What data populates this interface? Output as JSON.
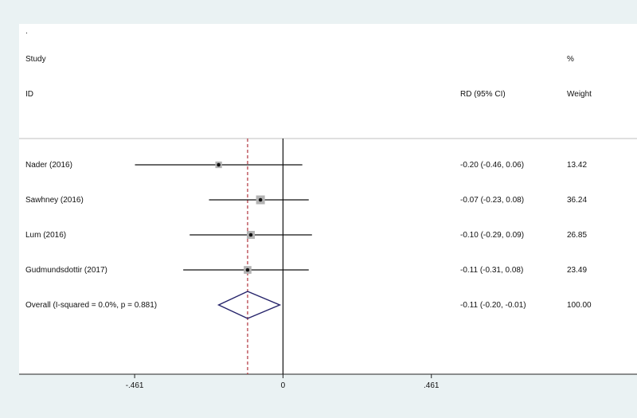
{
  "chart_data": {
    "type": "forest",
    "header": {
      "dot": ".",
      "study_label": "Study",
      "id_label": "ID",
      "effect_label": "RD (95% CI)",
      "percent_label": "%",
      "weight_label": "Weight"
    },
    "xlim": [
      -0.82,
      1.1
    ],
    "ticks": [
      {
        "value": -0.461,
        "label": "-.461"
      },
      {
        "value": 0,
        "label": "0"
      },
      {
        "value": 0.461,
        "label": ".461"
      }
    ],
    "null_line": 0,
    "overall_line": -0.11,
    "colors": {
      "background": "#eaf2f3",
      "panel": "#ffffff",
      "line": "#111111",
      "box": "#b3b3b3",
      "diamond": "#26246b",
      "overall_line": "#b0313a"
    },
    "studies": [
      {
        "id": "Nader (2016)",
        "rd": -0.2,
        "lo": -0.46,
        "hi": 0.06,
        "ci_text": "-0.20 (-0.46, 0.06)",
        "weight": 13.42,
        "weight_text": "13.42"
      },
      {
        "id": "Sawhney (2016)",
        "rd": -0.07,
        "lo": -0.23,
        "hi": 0.08,
        "ci_text": "-0.07 (-0.23, 0.08)",
        "weight": 36.24,
        "weight_text": "36.24"
      },
      {
        "id": "Lum (2016)",
        "rd": -0.1,
        "lo": -0.29,
        "hi": 0.09,
        "ci_text": "-0.10 (-0.29, 0.09)",
        "weight": 26.85,
        "weight_text": "26.85"
      },
      {
        "id": "Gudmundsdottir (2017)",
        "rd": -0.11,
        "lo": -0.31,
        "hi": 0.08,
        "ci_text": "-0.11 (-0.31, 0.08)",
        "weight": 23.49,
        "weight_text": "23.49"
      }
    ],
    "overall": {
      "label": "Overall  (I-squared = 0.0%, p = 0.881)",
      "rd": -0.11,
      "lo": -0.2,
      "hi": -0.01,
      "ci_text": "-0.11 (-0.20, -0.01)",
      "weight_text": "100.00"
    }
  }
}
